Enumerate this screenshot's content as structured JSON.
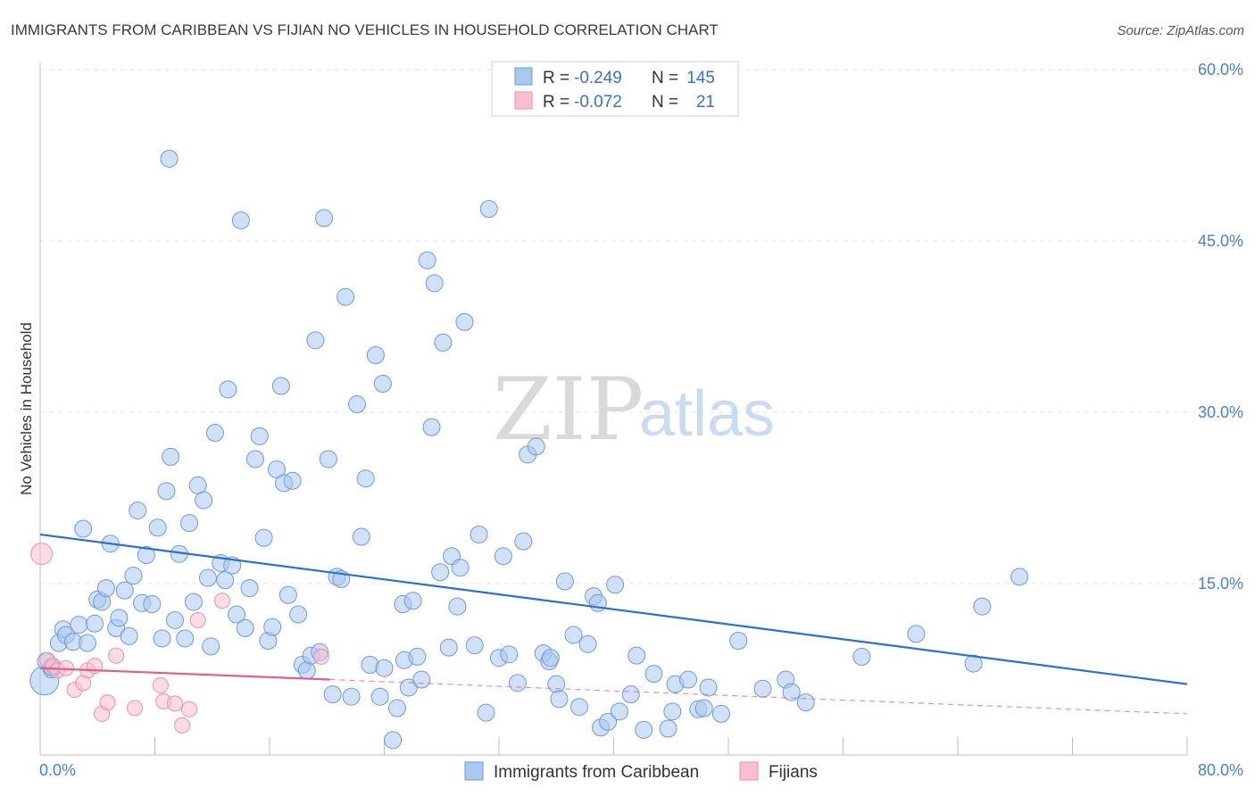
{
  "title": "IMMIGRANTS FROM CARIBBEAN VS FIJIAN NO VEHICLES IN HOUSEHOLD CORRELATION CHART",
  "source": "Source: ZipAtlas.com",
  "watermark": {
    "zip": "ZIP",
    "atlas": "atlas"
  },
  "legend": {
    "rows": [
      {
        "r_label": "R =",
        "r_value": "-0.249",
        "n_label": "N =",
        "n_value": "145"
      },
      {
        "r_label": "R =",
        "r_value": "-0.072",
        "n_label": "N =",
        "n_value": "21"
      }
    ]
  },
  "bottom_legend": [
    "Immigrants from Caribbean",
    "Fijians"
  ],
  "colors": {
    "blue_fill": "#a9c8f0",
    "blue_stroke": "#6f9ad8",
    "blue_line": "#2b6fd6",
    "pink_fill": "#f7bfd0",
    "pink_stroke": "#ec8fae",
    "pink_line": "#e0608a",
    "tick_text": "#4a7fd0",
    "grid": "#e3e3e3"
  },
  "chart_data": {
    "type": "scatter",
    "title": "IMMIGRANTS FROM CARIBBEAN VS FIJIAN NO VEHICLES IN HOUSEHOLD CORRELATION CHART",
    "xlabel": "",
    "ylabel": "No Vehicles in Household",
    "xlim": [
      0,
      80
    ],
    "ylim": [
      0,
      60
    ],
    "x_tick_labels": [
      "0.0%",
      "80.0%"
    ],
    "y_ticks": [
      15,
      30,
      45,
      60
    ],
    "y_tick_labels": [
      "15.0%",
      "30.0%",
      "45.0%",
      "60.0%"
    ],
    "grid": true,
    "legend_position": "top-center",
    "series": [
      {
        "name": "Immigrants from Caribbean",
        "trend": {
          "x": [
            0,
            80
          ],
          "y": [
            19.3,
            6.2
          ],
          "style": "solid"
        },
        "points": [
          [
            0.3,
            6.5
          ],
          [
            0.4,
            8.2
          ],
          [
            0.8,
            7.5
          ],
          [
            1.3,
            9.8
          ],
          [
            1.6,
            11.0
          ],
          [
            1.8,
            10.5
          ],
          [
            2.3,
            9.9
          ],
          [
            2.7,
            11.4
          ],
          [
            3.0,
            19.8
          ],
          [
            3.3,
            9.8
          ],
          [
            3.8,
            11.5
          ],
          [
            4.0,
            13.6
          ],
          [
            4.3,
            13.4
          ],
          [
            4.6,
            14.6
          ],
          [
            4.9,
            18.5
          ],
          [
            5.3,
            11.1
          ],
          [
            5.5,
            12.0
          ],
          [
            5.9,
            14.4
          ],
          [
            6.2,
            10.4
          ],
          [
            6.5,
            15.7
          ],
          [
            6.8,
            21.4
          ],
          [
            7.1,
            13.3
          ],
          [
            7.4,
            17.5
          ],
          [
            7.8,
            13.2
          ],
          [
            8.2,
            19.9
          ],
          [
            8.5,
            10.2
          ],
          [
            8.8,
            23.1
          ],
          [
            9.1,
            26.1
          ],
          [
            9.4,
            11.8
          ],
          [
            9.7,
            17.6
          ],
          [
            10.1,
            10.2
          ],
          [
            10.4,
            20.3
          ],
          [
            10.7,
            13.4
          ],
          [
            11.0,
            23.6
          ],
          [
            11.4,
            22.3
          ],
          [
            11.7,
            15.5
          ],
          [
            11.9,
            9.5
          ],
          [
            12.2,
            28.2
          ],
          [
            12.6,
            16.8
          ],
          [
            12.9,
            15.3
          ],
          [
            13.1,
            32.0
          ],
          [
            13.4,
            16.6
          ],
          [
            13.7,
            12.3
          ],
          [
            14.0,
            46.8
          ],
          [
            14.3,
            11.1
          ],
          [
            14.6,
            14.6
          ],
          [
            15.0,
            25.9
          ],
          [
            15.3,
            27.9
          ],
          [
            15.6,
            19.0
          ],
          [
            15.9,
            10.0
          ],
          [
            16.2,
            11.2
          ],
          [
            16.5,
            25.0
          ],
          [
            16.8,
            32.3
          ],
          [
            17.0,
            23.8
          ],
          [
            17.3,
            14.0
          ],
          [
            17.6,
            24.0
          ],
          [
            18.0,
            12.3
          ],
          [
            18.3,
            7.9
          ],
          [
            18.6,
            7.4
          ],
          [
            18.9,
            8.7
          ],
          [
            19.2,
            36.3
          ],
          [
            19.5,
            9.0
          ],
          [
            19.8,
            47.0
          ],
          [
            20.1,
            25.9
          ],
          [
            20.4,
            5.3
          ],
          [
            20.7,
            15.6
          ],
          [
            21.0,
            15.4
          ],
          [
            21.3,
            40.1
          ],
          [
            21.7,
            5.1
          ],
          [
            22.1,
            30.7
          ],
          [
            22.4,
            19.1
          ],
          [
            22.7,
            24.2
          ],
          [
            23.0,
            7.9
          ],
          [
            23.4,
            35.0
          ],
          [
            23.7,
            5.1
          ],
          [
            23.9,
            32.5
          ],
          [
            24.0,
            7.6
          ],
          [
            24.6,
            1.3
          ],
          [
            24.9,
            4.1
          ],
          [
            25.3,
            13.2
          ],
          [
            25.4,
            8.3
          ],
          [
            25.7,
            5.9
          ],
          [
            26.0,
            13.5
          ],
          [
            26.3,
            8.6
          ],
          [
            26.6,
            6.6
          ],
          [
            27.0,
            43.3
          ],
          [
            27.3,
            28.7
          ],
          [
            27.5,
            41.3
          ],
          [
            27.9,
            16.0
          ],
          [
            28.1,
            36.1
          ],
          [
            28.5,
            9.4
          ],
          [
            28.7,
            17.4
          ],
          [
            29.1,
            13.0
          ],
          [
            29.3,
            16.4
          ],
          [
            29.6,
            37.9
          ],
          [
            30.3,
            9.6
          ],
          [
            30.6,
            19.3
          ],
          [
            31.1,
            3.7
          ],
          [
            31.3,
            47.8
          ],
          [
            32.0,
            8.5
          ],
          [
            32.3,
            17.4
          ],
          [
            32.7,
            8.8
          ],
          [
            33.3,
            6.3
          ],
          [
            33.7,
            18.7
          ],
          [
            34.0,
            26.3
          ],
          [
            34.6,
            27.0
          ],
          [
            35.1,
            8.9
          ],
          [
            35.5,
            8.2
          ],
          [
            35.6,
            8.5
          ],
          [
            36.0,
            6.2
          ],
          [
            36.2,
            4.9
          ],
          [
            36.6,
            15.2
          ],
          [
            37.2,
            10.5
          ],
          [
            37.6,
            4.2
          ],
          [
            38.2,
            9.7
          ],
          [
            38.6,
            13.9
          ],
          [
            38.9,
            13.3
          ],
          [
            39.1,
            2.4
          ],
          [
            39.6,
            2.9
          ],
          [
            40.1,
            14.9
          ],
          [
            40.4,
            3.8
          ],
          [
            41.2,
            5.3
          ],
          [
            41.6,
            8.7
          ],
          [
            42.1,
            2.2
          ],
          [
            42.8,
            7.1
          ],
          [
            43.8,
            2.3
          ],
          [
            44.1,
            3.8
          ],
          [
            44.3,
            6.2
          ],
          [
            45.2,
            6.6
          ],
          [
            45.9,
            4.0
          ],
          [
            46.3,
            4.1
          ],
          [
            46.6,
            5.9
          ],
          [
            47.5,
            3.6
          ],
          [
            48.7,
            10.0
          ],
          [
            50.4,
            5.8
          ],
          [
            52.0,
            6.6
          ],
          [
            52.4,
            5.5
          ],
          [
            53.4,
            4.6
          ],
          [
            57.3,
            8.6
          ],
          [
            61.1,
            10.6
          ],
          [
            65.1,
            8.0
          ],
          [
            65.7,
            13.0
          ],
          [
            68.3,
            15.6
          ],
          [
            0.8,
            7.7
          ],
          [
            9.0,
            52.2
          ]
        ]
      },
      {
        "name": "Fijians",
        "trend": {
          "x": [
            0,
            20.2
          ],
          "y": [
            7.6,
            6.6
          ],
          "style": "solid",
          "extended": {
            "x": [
              20.2,
              80
            ],
            "y": [
              6.6,
              3.6
            ],
            "style": "dashed"
          }
        },
        "points": [
          [
            0.1,
            17.6
          ],
          [
            0.5,
            8.3
          ],
          [
            0.9,
            7.8
          ],
          [
            1.2,
            7.4
          ],
          [
            1.8,
            7.6
          ],
          [
            2.4,
            5.7
          ],
          [
            3.0,
            6.3
          ],
          [
            3.3,
            7.4
          ],
          [
            3.8,
            7.8
          ],
          [
            4.3,
            3.6
          ],
          [
            4.7,
            4.6
          ],
          [
            5.3,
            8.7
          ],
          [
            6.6,
            4.1
          ],
          [
            8.4,
            6.1
          ],
          [
            8.6,
            4.7
          ],
          [
            9.4,
            4.5
          ],
          [
            9.9,
            2.6
          ],
          [
            10.4,
            4.0
          ],
          [
            11.0,
            11.8
          ],
          [
            12.7,
            13.5
          ],
          [
            19.6,
            8.6
          ]
        ]
      }
    ]
  }
}
